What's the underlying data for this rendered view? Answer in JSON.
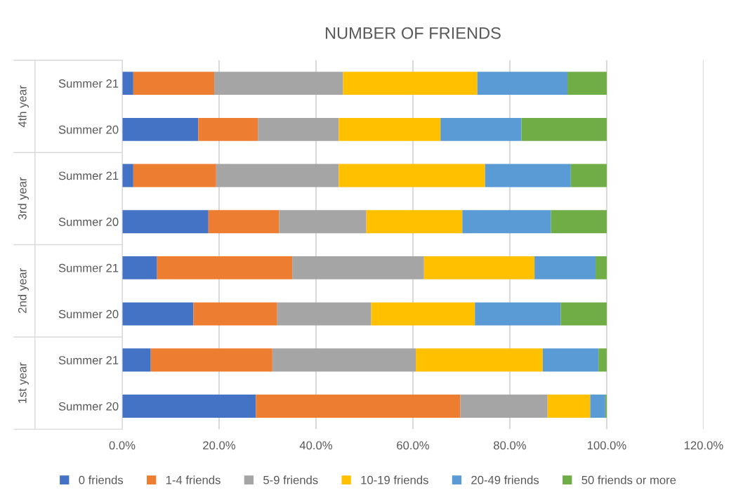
{
  "chart_data": {
    "type": "bar",
    "orientation": "horizontal",
    "stacked": true,
    "title": "NUMBER OF FRIENDS",
    "categories": [
      "Summer 21",
      "Summer 20",
      "Summer 21",
      "Summer 20",
      "Summer 21",
      "Summer 20",
      "Summer 21",
      "Summer 20"
    ],
    "annotations": [
      "4th year",
      "3rd year",
      "2nd year",
      "1st year"
    ],
    "series": [
      {
        "name": "0 friends",
        "color": "#4472c4",
        "values": [
          2.3,
          15.7,
          2.3,
          17.8,
          7.2,
          14.7,
          5.9,
          27.6
        ]
      },
      {
        "name": "1-4 friends",
        "color": "#ed7d31",
        "values": [
          16.7,
          12.3,
          17.1,
          14.6,
          27.9,
          17.3,
          25.1,
          42.2
        ]
      },
      {
        "name": "5-9 friends",
        "color": "#a5a5a5",
        "values": [
          26.6,
          16.7,
          25.3,
          18.0,
          27.2,
          19.4,
          29.6,
          18.0
        ]
      },
      {
        "name": "10-19 friends",
        "color": "#ffc000",
        "values": [
          27.7,
          21.0,
          30.2,
          19.8,
          22.8,
          21.4,
          26.2,
          8.8
        ]
      },
      {
        "name": "20-49 friends",
        "color": "#5b9bd5",
        "values": [
          18.6,
          16.7,
          17.7,
          18.3,
          12.6,
          17.7,
          11.5,
          3.1
        ]
      },
      {
        "name": "50 friends or more",
        "color": "#70ad47",
        "values": [
          8.1,
          17.6,
          7.4,
          11.5,
          2.3,
          9.5,
          1.7,
          0.3
        ]
      }
    ],
    "xlim": [
      0,
      120
    ],
    "xticks": [
      {
        "value": 0,
        "label": "0.0%"
      },
      {
        "value": 20,
        "label": "20.0%"
      },
      {
        "value": 40,
        "label": "40.0%"
      },
      {
        "value": 60,
        "label": "60.0%"
      },
      {
        "value": 80,
        "label": "80.0%"
      },
      {
        "value": 100,
        "label": "100.0%"
      },
      {
        "value": 120,
        "label": "120.0%"
      }
    ],
    "grid": "x",
    "legend": "bottom"
  }
}
